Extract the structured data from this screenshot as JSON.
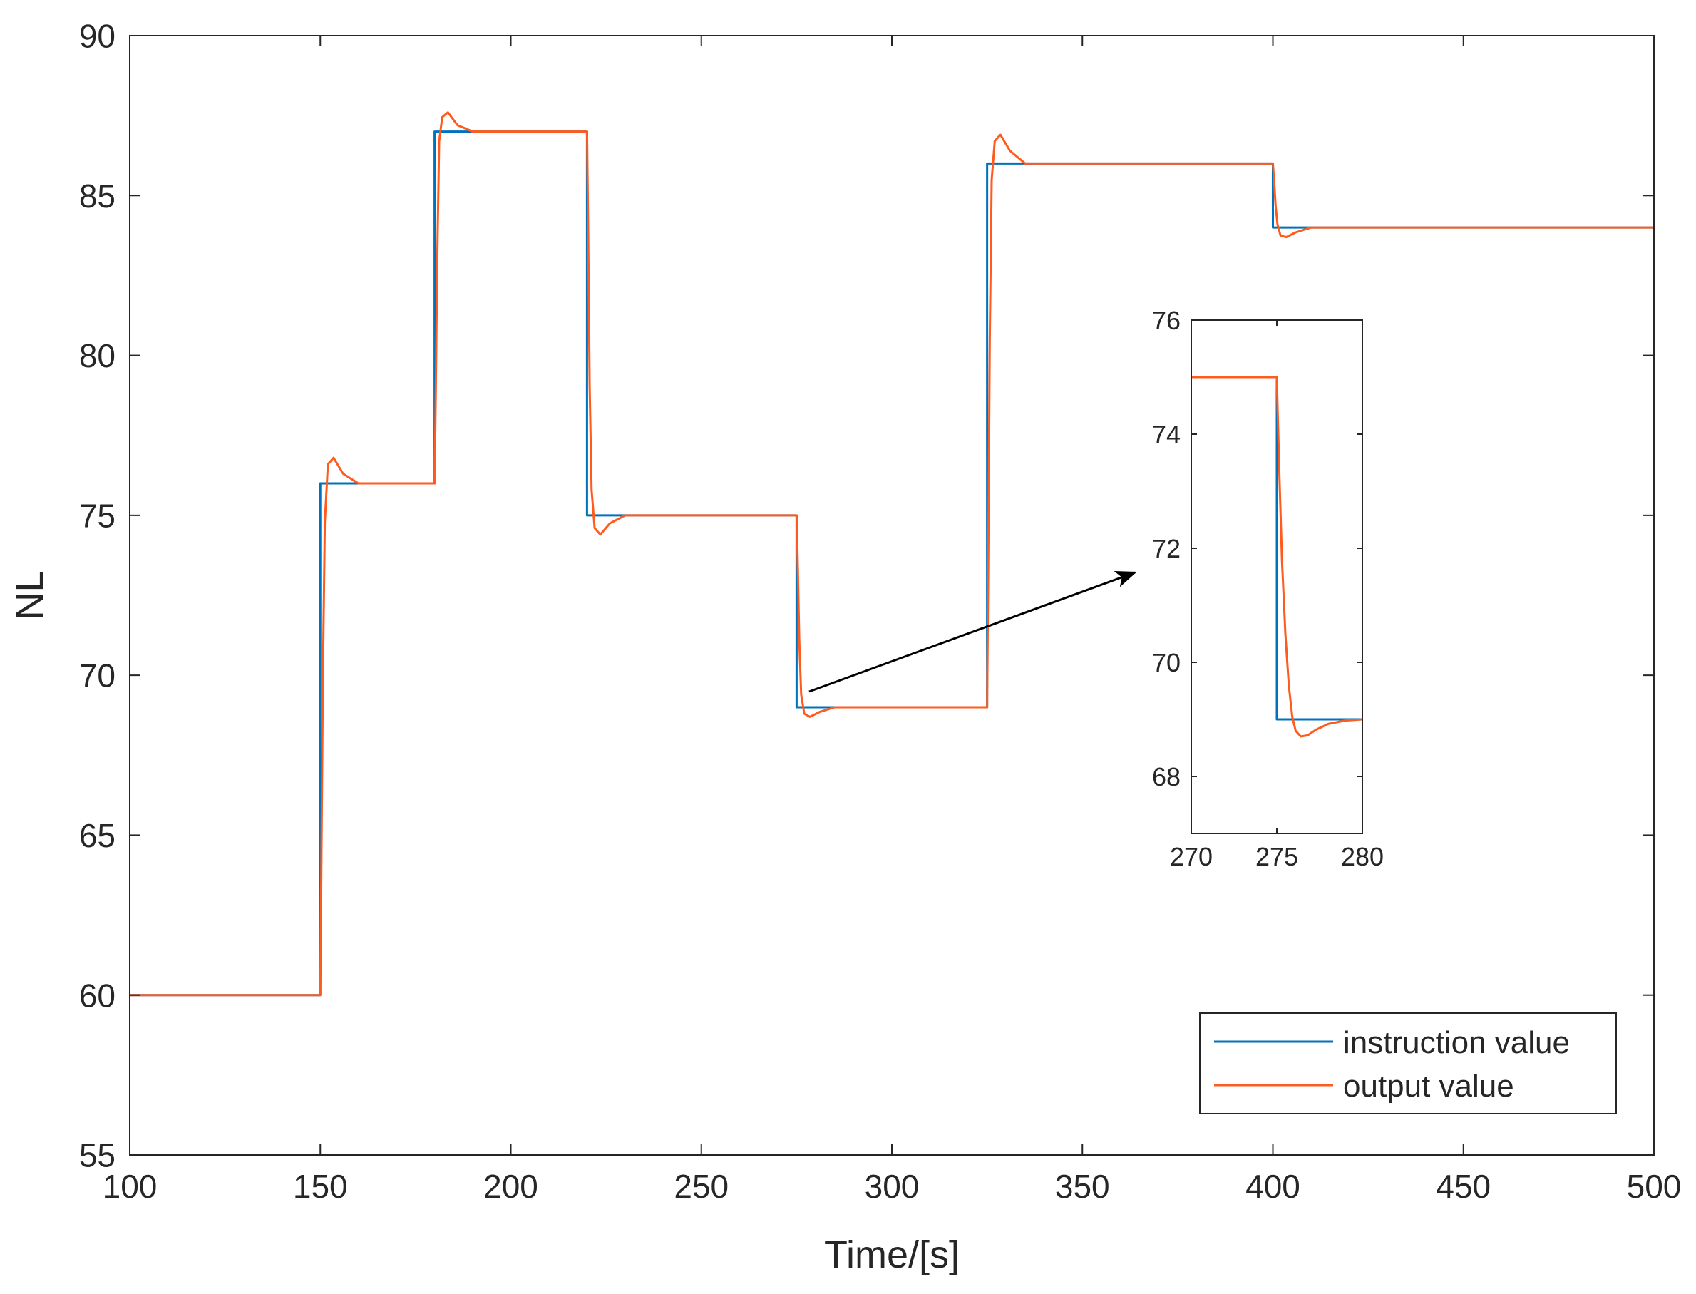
{
  "chart_data": [
    {
      "id": "main",
      "type": "line",
      "xlabel": "Time/[s]",
      "ylabel": "NL",
      "xlim": [
        100,
        500
      ],
      "ylim": [
        55,
        90
      ],
      "xticks": [
        100,
        150,
        200,
        250,
        300,
        350,
        400,
        450,
        500
      ],
      "yticks": [
        55,
        60,
        65,
        70,
        75,
        80,
        85,
        90
      ],
      "grid": false,
      "legend_position": "bottom-right",
      "series": [
        {
          "name": "instruction value",
          "color": "#0072BD",
          "x": [
            100,
            150,
            150,
            180,
            180,
            220,
            220,
            275,
            275,
            325,
            325,
            400,
            400,
            500
          ],
          "y": [
            60,
            60,
            76,
            76,
            87,
            87,
            75,
            75,
            69,
            69,
            86,
            86,
            84,
            84
          ]
        },
        {
          "name": "output value",
          "color": "#FF5B1E",
          "x": [
            100,
            150,
            150.3,
            150.7,
            151.2,
            152,
            153.5,
            156,
            160,
            180,
            180.3,
            180.7,
            181.2,
            182,
            183.5,
            186,
            190,
            220,
            220.3,
            220.7,
            221.2,
            222,
            223.5,
            226,
            230,
            275,
            275.3,
            275.7,
            276.2,
            277,
            278.5,
            281,
            285,
            325,
            325.3,
            325.7,
            326.2,
            327,
            328.5,
            331,
            335,
            400,
            400.3,
            400.7,
            401.2,
            402,
            403.5,
            406,
            410,
            500
          ],
          "y": [
            60,
            60,
            64.2,
            70,
            74.8,
            76.6,
            76.8,
            76.3,
            76,
            76,
            78.7,
            83,
            86.7,
            87.45,
            87.6,
            87.2,
            87,
            87,
            83.9,
            79,
            75.8,
            74.6,
            74.4,
            74.75,
            75,
            75,
            73.5,
            71.1,
            69.4,
            68.8,
            68.7,
            68.85,
            69,
            69,
            73.5,
            80.5,
            85.5,
            86.7,
            86.9,
            86.4,
            86,
            86,
            85.5,
            84.7,
            84.1,
            83.75,
            83.7,
            83.85,
            84,
            84
          ]
        }
      ]
    },
    {
      "id": "inset",
      "type": "line",
      "xlim": [
        270,
        280
      ],
      "ylim": [
        67,
        76
      ],
      "xticks": [
        270,
        275,
        280
      ],
      "yticks": [
        68,
        70,
        72,
        74,
        76
      ],
      "grid": false,
      "series": [
        {
          "name": "instruction value",
          "color": "#0072BD",
          "x": [
            270,
            275,
            275,
            280
          ],
          "y": [
            75,
            75,
            69,
            69
          ]
        },
        {
          "name": "output value",
          "color": "#FF5B1E",
          "x": [
            270,
            275,
            275.05,
            275.15,
            275.3,
            275.5,
            275.7,
            275.9,
            276.1,
            276.4,
            276.8,
            277.3,
            278,
            279,
            280
          ],
          "y": [
            75,
            75,
            74.4,
            73.3,
            71.8,
            70.5,
            69.6,
            69.05,
            68.8,
            68.7,
            68.72,
            68.82,
            68.92,
            68.98,
            69
          ]
        }
      ]
    }
  ]
}
